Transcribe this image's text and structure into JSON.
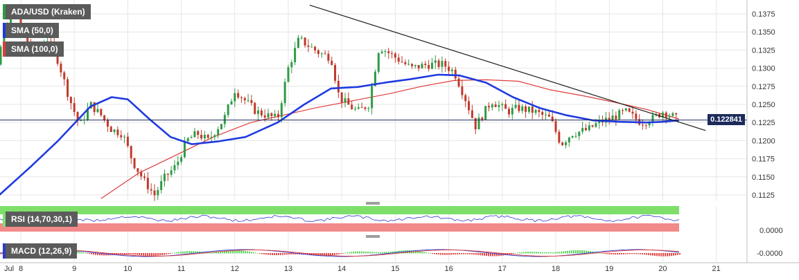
{
  "chart_data": {
    "type": "candlestick",
    "symbol_label": "ADA/USD (Kraken)",
    "indicators": [
      {
        "name": "SMA (50,0)",
        "color": "#1e3adf"
      },
      {
        "name": "SMA (100,0)",
        "color": "#e03b3b"
      }
    ],
    "x_ticks": [
      "Jul",
      "8",
      "9",
      "10",
      "11",
      "12",
      "13",
      "14",
      "15",
      "16",
      "17",
      "18",
      "19",
      "20",
      "21"
    ],
    "y_ticks": [
      "0.1375",
      "0.1350",
      "0.1325",
      "0.1300",
      "0.1275",
      "0.1250",
      "0.1225",
      "0.1200",
      "0.1175",
      "0.1150",
      "0.1125"
    ],
    "ylim": [
      0.1115,
      0.1392
    ],
    "last_price": "0.122841",
    "last_price_value": 0.122841,
    "trendline": [
      [
        "13.4",
        0.1387
      ],
      [
        "20.8",
        0.1214
      ]
    ],
    "price_anchors": [
      [
        7.0,
        0.1135
      ],
      [
        7.3,
        0.12
      ],
      [
        7.5,
        0.129
      ],
      [
        7.7,
        0.135
      ],
      [
        7.85,
        0.138
      ],
      [
        8.0,
        0.136
      ],
      [
        8.2,
        0.132
      ],
      [
        8.5,
        0.134
      ],
      [
        8.7,
        0.131
      ],
      [
        8.9,
        0.126
      ],
      [
        9.1,
        0.122
      ],
      [
        9.3,
        0.125
      ],
      [
        9.5,
        0.1235
      ],
      [
        9.7,
        0.1215
      ],
      [
        9.9,
        0.121
      ],
      [
        10.1,
        0.117
      ],
      [
        10.3,
        0.1145
      ],
      [
        10.5,
        0.1125
      ],
      [
        10.7,
        0.115
      ],
      [
        10.9,
        0.1165
      ],
      [
        11.1,
        0.12
      ],
      [
        11.3,
        0.121
      ],
      [
        11.5,
        0.12
      ],
      [
        11.8,
        0.123
      ],
      [
        12.0,
        0.127
      ],
      [
        12.2,
        0.1255
      ],
      [
        12.4,
        0.124
      ],
      [
        12.6,
        0.1235
      ],
      [
        12.8,
        0.123
      ],
      [
        13.0,
        0.13
      ],
      [
        13.2,
        0.134
      ],
      [
        13.4,
        0.133
      ],
      [
        13.6,
        0.132
      ],
      [
        13.8,
        0.1315
      ],
      [
        13.95,
        0.126
      ],
      [
        14.1,
        0.125
      ],
      [
        14.3,
        0.124
      ],
      [
        14.5,
        0.125
      ],
      [
        14.7,
        0.133
      ],
      [
        15.0,
        0.1315
      ],
      [
        15.3,
        0.13
      ],
      [
        15.6,
        0.1305
      ],
      [
        15.9,
        0.1305
      ],
      [
        16.1,
        0.1295
      ],
      [
        16.3,
        0.126
      ],
      [
        16.5,
        0.122
      ],
      [
        16.8,
        0.1255
      ],
      [
        17.1,
        0.124
      ],
      [
        17.3,
        0.1245
      ],
      [
        17.6,
        0.124
      ],
      [
        17.9,
        0.123
      ],
      [
        18.1,
        0.1195
      ],
      [
        18.3,
        0.121
      ],
      [
        18.6,
        0.1215
      ],
      [
        18.8,
        0.1225
      ],
      [
        19.0,
        0.123
      ],
      [
        19.3,
        0.124
      ],
      [
        19.6,
        0.1225
      ],
      [
        19.8,
        0.123
      ],
      [
        20.0,
        0.124
      ],
      [
        20.15,
        0.1235
      ],
      [
        20.3,
        0.12284
      ]
    ],
    "sma50_points": [
      [
        7.6,
        0.1125
      ],
      [
        8.2,
        0.1165
      ],
      [
        8.7,
        0.12
      ],
      [
        9.3,
        0.1247
      ],
      [
        9.7,
        0.126
      ],
      [
        10.0,
        0.1257
      ],
      [
        10.4,
        0.123
      ],
      [
        10.8,
        0.1205
      ],
      [
        11.2,
        0.1195
      ],
      [
        11.7,
        0.1199
      ],
      [
        12.2,
        0.1205
      ],
      [
        12.8,
        0.1225
      ],
      [
        13.3,
        0.125
      ],
      [
        13.8,
        0.1272
      ],
      [
        14.3,
        0.1274
      ],
      [
        14.8,
        0.128
      ],
      [
        15.3,
        0.1285
      ],
      [
        15.8,
        0.1291
      ],
      [
        16.2,
        0.129
      ],
      [
        16.7,
        0.128
      ],
      [
        17.2,
        0.126
      ],
      [
        17.7,
        0.1245
      ],
      [
        18.2,
        0.1235
      ],
      [
        18.7,
        0.1228
      ],
      [
        19.2,
        0.1226
      ],
      [
        19.7,
        0.1225
      ],
      [
        20.0,
        0.1226
      ],
      [
        20.3,
        0.1228
      ]
    ],
    "sma100_points": [
      [
        9.5,
        0.112
      ],
      [
        10.2,
        0.1155
      ],
      [
        10.9,
        0.118
      ],
      [
        11.6,
        0.1205
      ],
      [
        12.3,
        0.1225
      ],
      [
        12.9,
        0.1235
      ],
      [
        13.5,
        0.1245
      ],
      [
        14.2,
        0.1255
      ],
      [
        14.9,
        0.1265
      ],
      [
        15.5,
        0.1275
      ],
      [
        16.1,
        0.1283
      ],
      [
        16.7,
        0.1284
      ],
      [
        17.3,
        0.1282
      ],
      [
        17.9,
        0.127
      ],
      [
        18.5,
        0.1262
      ],
      [
        19.1,
        0.1253
      ],
      [
        19.7,
        0.1243
      ],
      [
        20.3,
        0.123
      ]
    ],
    "rsi": {
      "label": "RSI (14,70,30,1)",
      "overbought_color": "#7ddf6a",
      "oversold_color": "#f28a8a",
      "line_color": "#2b3bcf",
      "axis_label": "0.0000"
    },
    "macd": {
      "label": "MACD (12,26,9)",
      "axis_label": "-0.0000",
      "line_color": "#2b3bcf",
      "signal_color": "#e03b3b"
    },
    "colors": {
      "up": "#2e9b45",
      "down": "#c0392b",
      "trendline": "#1a1a1a",
      "price_line": "#1b2a5a",
      "grid": "#e6e6e6"
    }
  }
}
